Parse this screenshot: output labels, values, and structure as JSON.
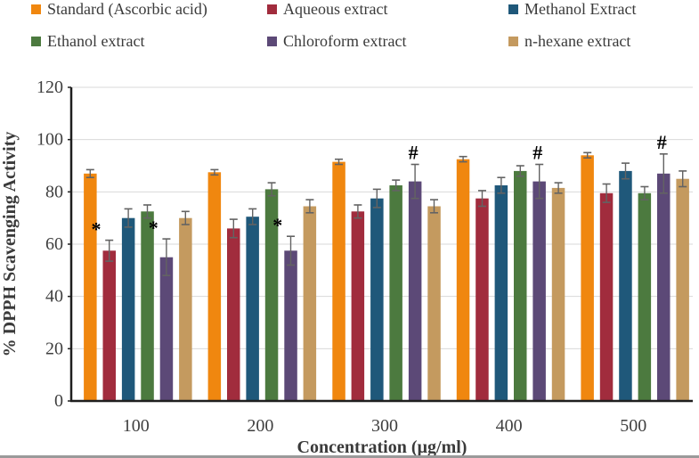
{
  "colors": {
    "grid": "#D9D9D9",
    "axis": "#1F1F1F",
    "error": "#636363",
    "tick_text": "#3F3F3F",
    "bottom_strip": "#9A9A9A"
  },
  "chart_data": {
    "type": "bar",
    "title": "",
    "xlabel": "Concentration (µg/ml)",
    "ylabel": "% DPPH Scavenging Activity",
    "categories": [
      "100",
      "200",
      "300",
      "400",
      "500"
    ],
    "ylim": [
      0,
      120
    ],
    "ytick_interval": 20,
    "grid": true,
    "legend_position": "top",
    "series": [
      {
        "name": "Standard (Ascorbic acid)",
        "color": "#F0870F",
        "values": [
          87,
          87.5,
          91.5,
          92.5,
          94
        ],
        "errors": [
          1.5,
          1,
          1,
          1,
          1
        ]
      },
      {
        "name": "Aqueous extract",
        "color": "#A12C3D",
        "values": [
          57.5,
          66,
          72.5,
          77.5,
          79.5
        ],
        "errors": [
          4,
          3.5,
          2.5,
          3,
          3.5
        ]
      },
      {
        "name": "Methanol Extract",
        "color": "#1F587A",
        "values": [
          70,
          70.5,
          77.5,
          82.5,
          88
        ],
        "errors": [
          3.5,
          3,
          3.5,
          3,
          3
        ]
      },
      {
        "name": "Ethanol extract",
        "color": "#4C7A3F",
        "values": [
          72.5,
          81,
          82.5,
          88,
          79.5
        ],
        "errors": [
          2.5,
          2.5,
          2,
          2,
          2.5
        ]
      },
      {
        "name": "Chloroform extract",
        "color": "#5C4977",
        "values": [
          55,
          57.5,
          84,
          84,
          87
        ],
        "errors": [
          7,
          5.5,
          6.5,
          6.5,
          7.5
        ]
      },
      {
        "name": "n-hexane extract",
        "color": "#C49A5F",
        "values": [
          70,
          74.5,
          74.5,
          81.5,
          85
        ],
        "errors": [
          2.5,
          2.5,
          2.5,
          2,
          3
        ]
      }
    ],
    "annotations": [
      {
        "series": "Aqueous extract",
        "category": "100",
        "symbol": "*"
      },
      {
        "series": "Chloroform extract",
        "category": "100",
        "symbol": "*"
      },
      {
        "series": "Chloroform extract",
        "category": "200",
        "symbol": "*"
      },
      {
        "series": "Chloroform extract",
        "category": "300",
        "symbol": "#"
      },
      {
        "series": "Chloroform extract",
        "category": "400",
        "symbol": "#"
      },
      {
        "series": "Chloroform extract",
        "category": "500",
        "symbol": "#"
      }
    ]
  }
}
